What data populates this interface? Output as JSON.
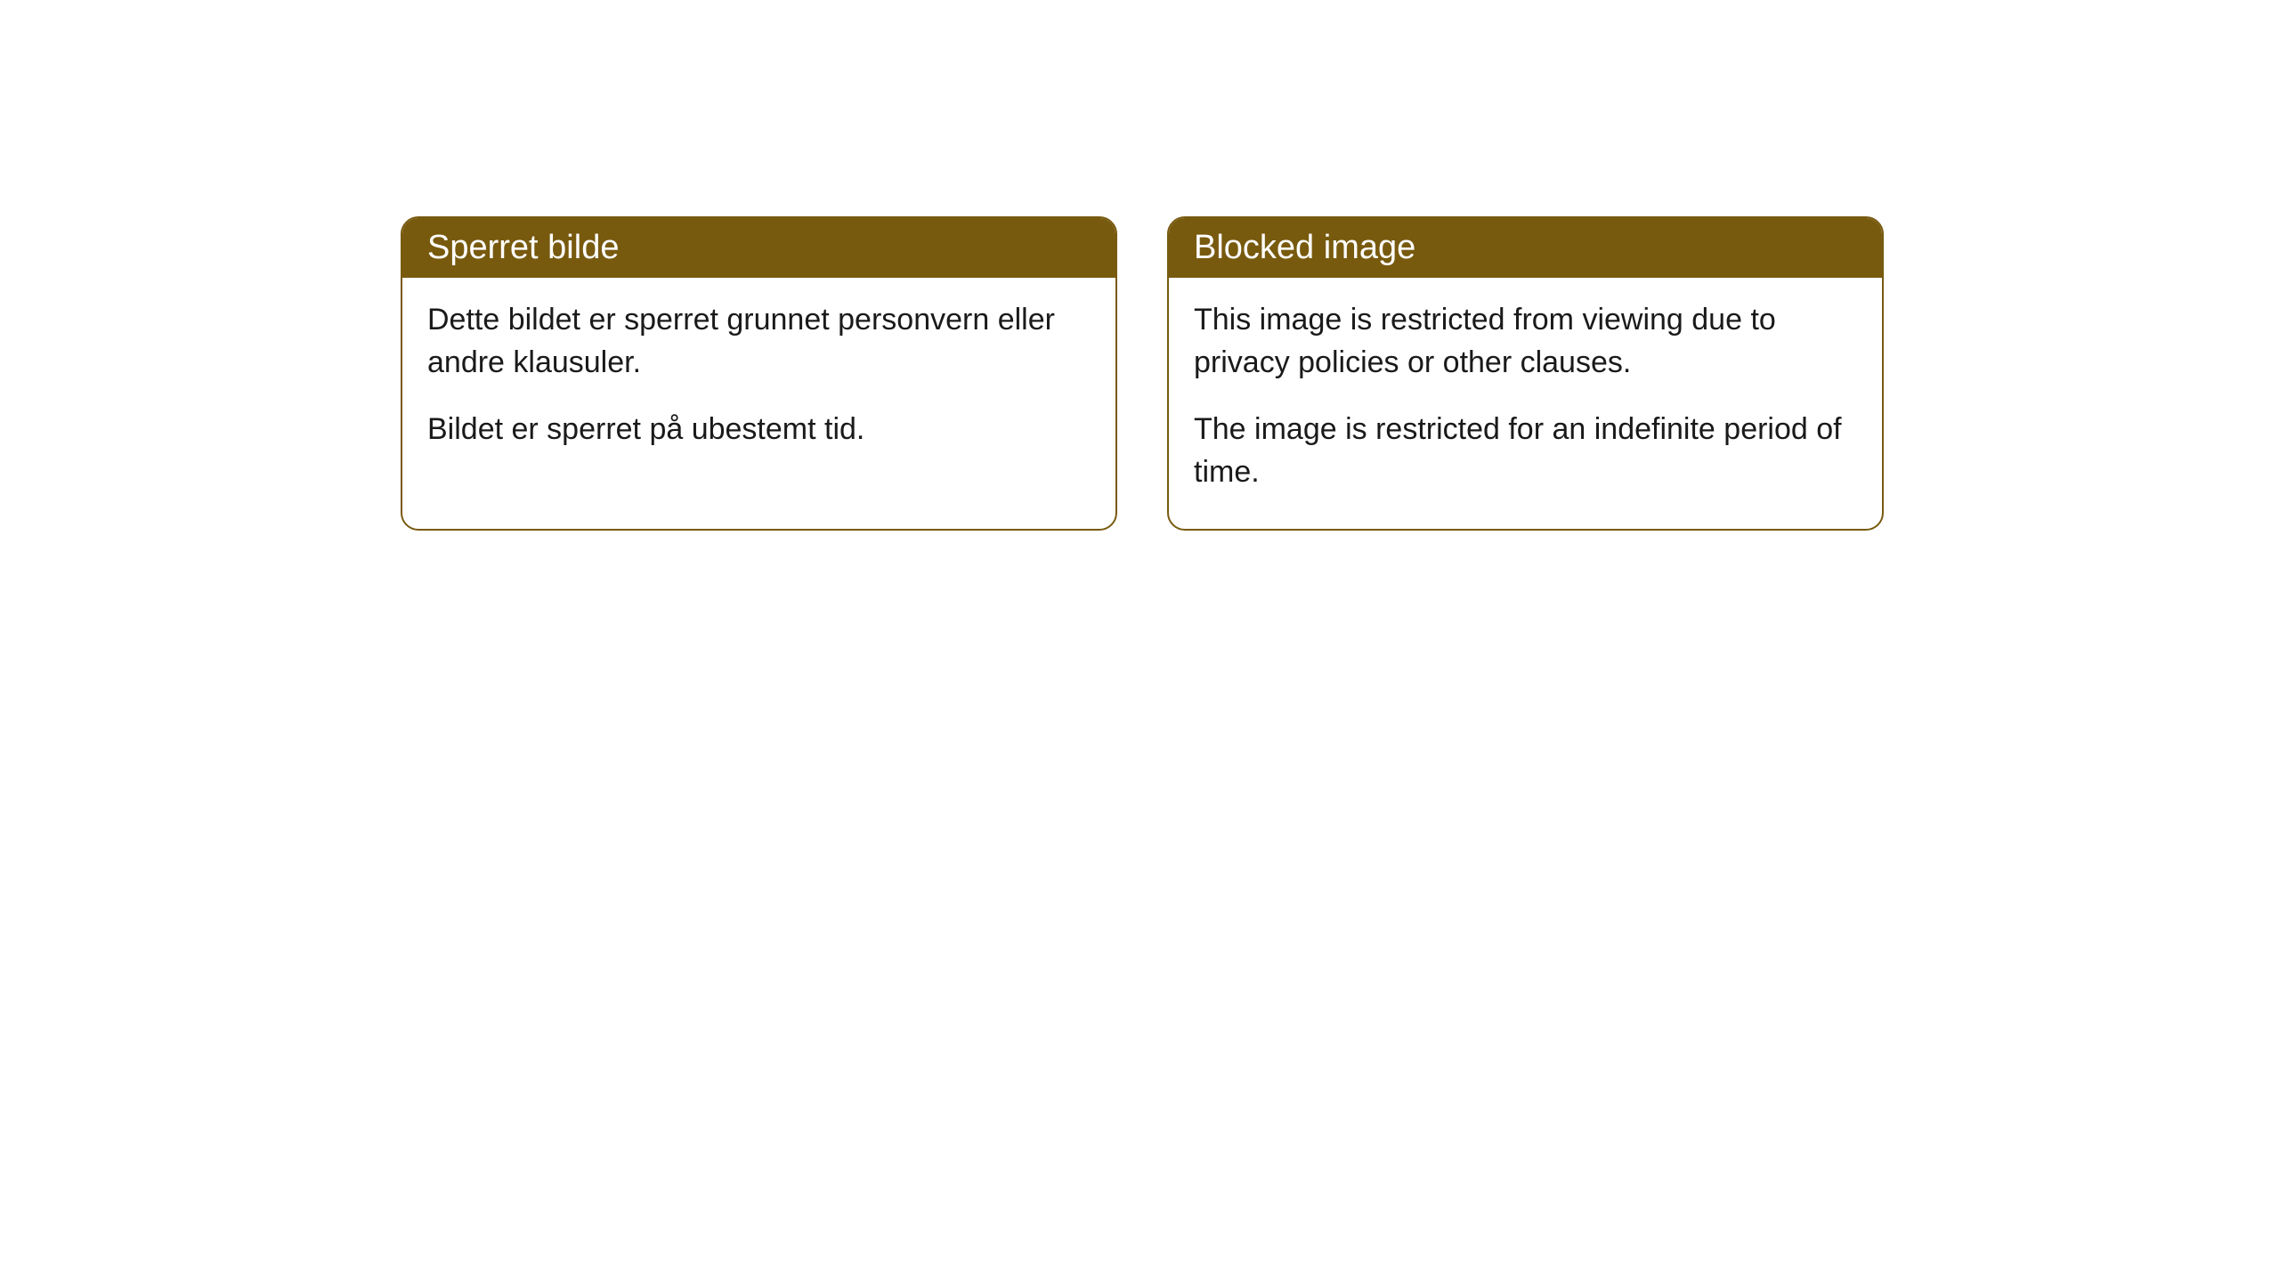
{
  "cards": [
    {
      "title": "Sperret bilde",
      "paragraph1": "Dette bildet er sperret grunnet personvern eller andre klausuler.",
      "paragraph2": "Bildet er sperret på ubestemt tid."
    },
    {
      "title": "Blocked image",
      "paragraph1": "This image is restricted from viewing due to privacy policies or other clauses.",
      "paragraph2": "The image is restricted for an indefinite period of time."
    }
  ],
  "styling": {
    "header_bg_color": "#785a0f",
    "header_text_color": "#ffffff",
    "border_color": "#785a0f",
    "body_bg_color": "#ffffff",
    "body_text_color": "#1a1a1a",
    "border_radius": 20,
    "header_fontsize": 38,
    "body_fontsize": 34
  }
}
